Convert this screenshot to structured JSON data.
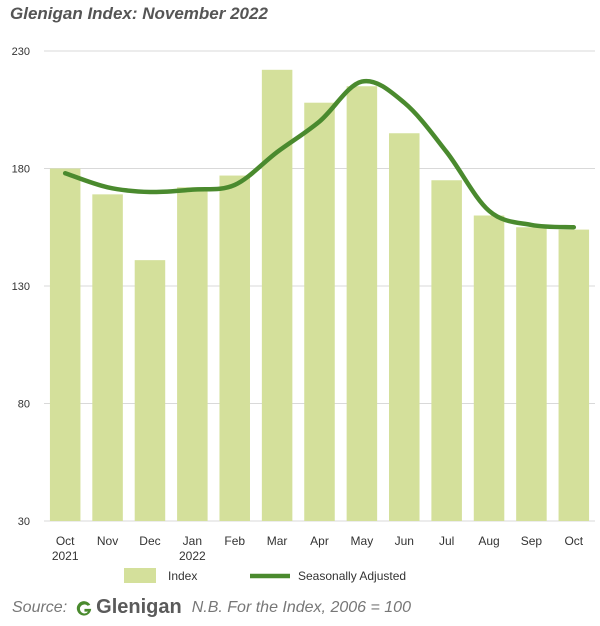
{
  "title": "Glenigan Index: November 2022",
  "chart_data": {
    "type": "bar",
    "categories": [
      "Oct",
      "Nov",
      "Dec",
      "Jan",
      "Feb",
      "Mar",
      "Apr",
      "May",
      "Jun",
      "Jul",
      "Aug",
      "Sep",
      "Oct"
    ],
    "category_sublabels": [
      "2021",
      "",
      "",
      "2022",
      "",
      "",
      "",
      "",
      "",
      "",
      "",
      "",
      ""
    ],
    "series": [
      {
        "name": "Index",
        "type": "bar",
        "color": "#d4e09b",
        "values": [
          180,
          169,
          141,
          172,
          177,
          222,
          208,
          215,
          195,
          175,
          160,
          155,
          154
        ]
      },
      {
        "name": "Seasonally Adjusted",
        "type": "line",
        "color": "#4a8a2e",
        "values": [
          178,
          172,
          170,
          171,
          173,
          187,
          200,
          217,
          208,
          187,
          162,
          156,
          155
        ]
      }
    ],
    "ylim": [
      30,
      230
    ],
    "yticks": [
      30,
      80,
      130,
      180,
      230
    ],
    "grid": true,
    "legend_position": "bottom"
  },
  "footer": {
    "source_label": "Source:",
    "brand": "Glenigan",
    "note": "N.B. For the Index, 2006 = 100"
  }
}
